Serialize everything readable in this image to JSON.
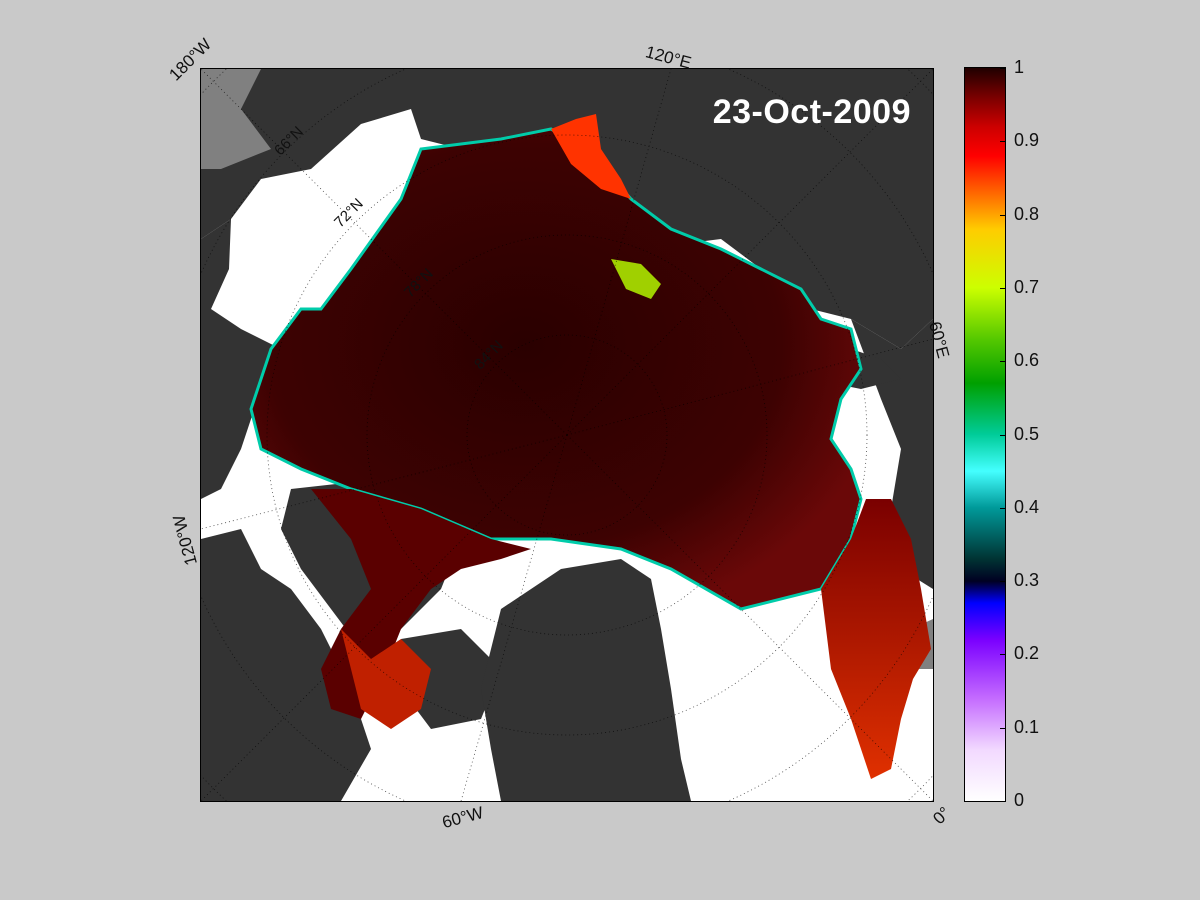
{
  "map": {
    "date_label": "23-Oct-2009",
    "colors": {
      "land": "#333333",
      "ocean": "#ffffff",
      "background": "#c9c9c9",
      "ice_high": "#3a0000"
    },
    "edge_labels": {
      "top_left": "180°W",
      "top_mid": "120°E",
      "right_mid": "60°E",
      "bottom_right": "0°",
      "bottom_mid": "60°W",
      "left_mid": "120°W"
    },
    "lat_labels": [
      "66°N",
      "72°N",
      "78°N",
      "84°N"
    ]
  },
  "colorbar": {
    "ticks": [
      "1",
      "0.9",
      "0.8",
      "0.7",
      "0.6",
      "0.5",
      "0.4",
      "0.3",
      "0.2",
      "0.1",
      "0"
    ]
  }
}
